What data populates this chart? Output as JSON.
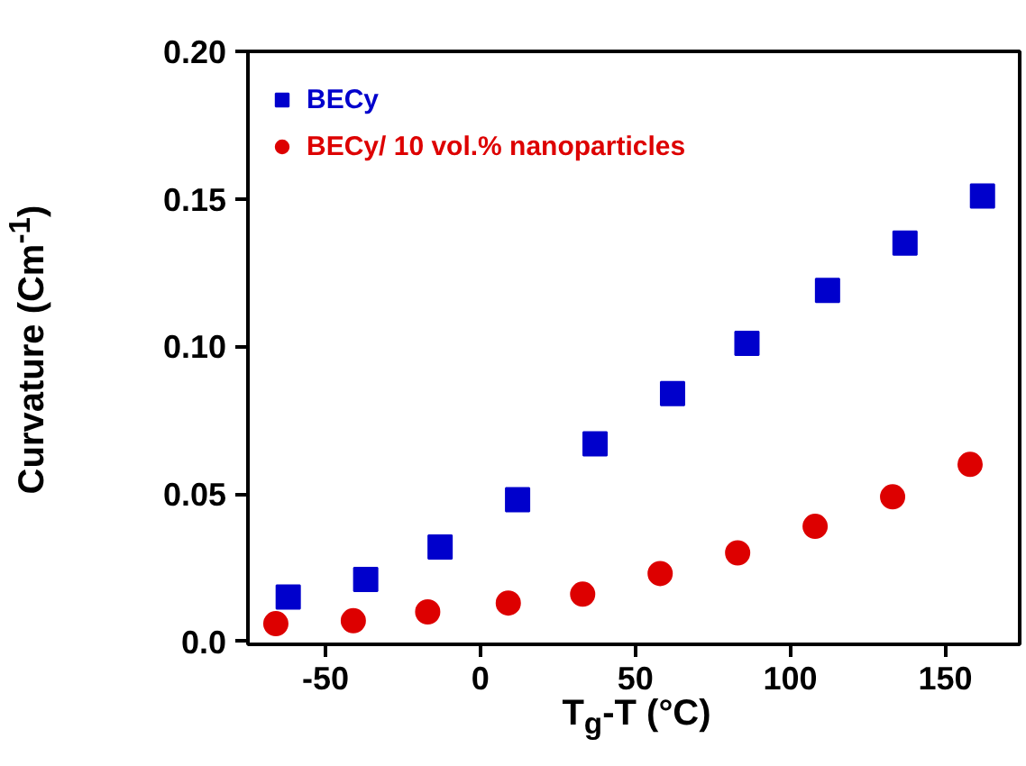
{
  "chart_data": {
    "type": "scatter",
    "xlabel": "T$_{g}$-T (°C)",
    "ylabel": "Curvature (Cm$^{-1}$)",
    "xlim": [
      -75,
      174
    ],
    "ylim": [
      -0.001,
      0.2
    ],
    "xticks": [
      -50,
      0,
      50,
      100,
      150
    ],
    "yticks": [
      {
        "value": 0,
        "label": "0.0"
      },
      {
        "value": 0.05,
        "label": "0.05"
      },
      {
        "value": 0.1,
        "label": "0.10"
      },
      {
        "value": 0.15,
        "label": "0.15"
      },
      {
        "value": 0.2,
        "label": "0.20"
      }
    ],
    "grid": false,
    "legend": "top left",
    "series": [
      {
        "name": "BECy",
        "color": "#0000cc",
        "marker": "square",
        "x": [
          -62,
          -37,
          -13,
          12,
          37,
          62,
          86,
          112,
          137,
          162
        ],
        "values": [
          0.015,
          0.021,
          0.032,
          0.048,
          0.067,
          0.084,
          0.101,
          0.119,
          0.135,
          0.151
        ]
      },
      {
        "name": "BECy/ 10 vol.% nanoparticles",
        "color": "#dd0000",
        "marker": "circle",
        "x": [
          -66,
          -41,
          -17,
          9,
          33,
          58,
          83,
          108,
          133,
          158
        ],
        "values": [
          0.006,
          0.007,
          0.01,
          0.013,
          0.016,
          0.023,
          0.03,
          0.039,
          0.049,
          0.06
        ]
      }
    ]
  }
}
